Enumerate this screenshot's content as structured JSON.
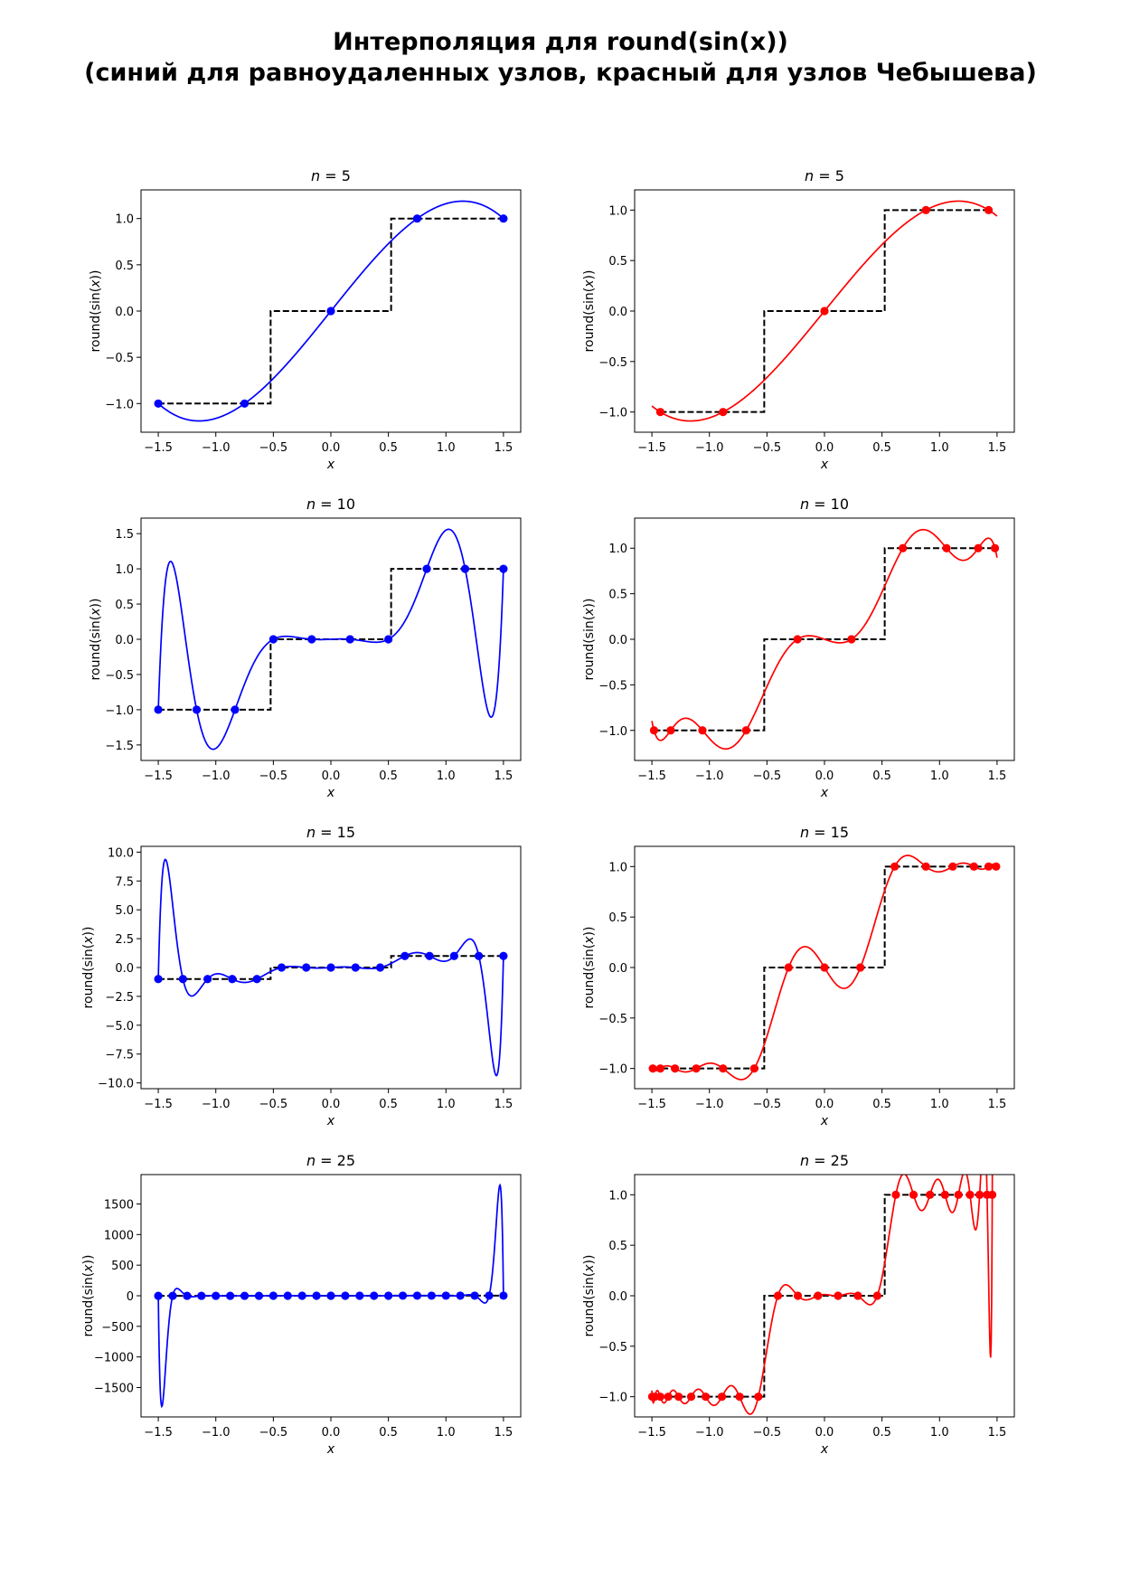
{
  "title_line1": "Интерполяция для round(sin(x))",
  "title_line2": "(синий для равноудаленных узлов, красный для узлов Чебышева)",
  "colors": {
    "equidistant": "#0000ff",
    "chebyshev": "#ff0000",
    "step": "#000000"
  },
  "chart_data": [
    {
      "type": "line",
      "n": 5,
      "title": "n = 5",
      "node_type": "equidistant",
      "xlabel": "x",
      "ylabel": "round(sin(x))",
      "xlim": [
        -1.65,
        1.65
      ],
      "ylim": [
        -1.31,
        1.31
      ],
      "xticks": [
        -1.5,
        -1.0,
        -0.5,
        0.0,
        0.5,
        1.0,
        1.5
      ],
      "xtick_labels": [
        "−1.5",
        "−1.0",
        "−0.5",
        "0.0",
        "0.5",
        "1.0",
        "1.5"
      ],
      "yticks": [
        -1.0,
        -0.5,
        0.0,
        0.5,
        1.0
      ],
      "ytick_labels": [
        "−1.0",
        "−0.5",
        "0.0",
        "0.5",
        "1.0"
      ],
      "nodes_x": [
        -1.5,
        -0.75,
        0.0,
        0.75,
        1.5
      ],
      "nodes_y": [
        -1,
        -1,
        0,
        1,
        1
      ]
    },
    {
      "type": "line",
      "n": 5,
      "title": "n = 5",
      "node_type": "chebyshev",
      "xlabel": "x",
      "ylabel": "round(sin(x))",
      "xlim": [
        -1.65,
        1.65
      ],
      "ylim": [
        -1.2,
        1.2
      ],
      "xticks": [
        -1.5,
        -1.0,
        -0.5,
        0.0,
        0.5,
        1.0,
        1.5
      ],
      "xtick_labels": [
        "−1.5",
        "−1.0",
        "−0.5",
        "0.0",
        "0.5",
        "1.0",
        "1.5"
      ],
      "yticks": [
        -1.0,
        -0.5,
        0.0,
        0.5,
        1.0
      ],
      "ytick_labels": [
        "−1.0",
        "−0.5",
        "0.0",
        "0.5",
        "1.0"
      ],
      "nodes_x": [
        -1.4266,
        -0.8817,
        0.0,
        0.8817,
        1.4266
      ],
      "nodes_y": [
        -1,
        -1,
        0,
        1,
        1
      ]
    },
    {
      "type": "line",
      "n": 10,
      "title": "n = 10",
      "node_type": "equidistant",
      "xlabel": "x",
      "ylabel": "round(sin(x))",
      "xlim": [
        -1.65,
        1.65
      ],
      "ylim": [
        -1.72,
        1.72
      ],
      "xticks": [
        -1.5,
        -1.0,
        -0.5,
        0.0,
        0.5,
        1.0,
        1.5
      ],
      "xtick_labels": [
        "−1.5",
        "−1.0",
        "−0.5",
        "0.0",
        "0.5",
        "1.0",
        "1.5"
      ],
      "yticks": [
        -1.5,
        -1.0,
        -0.5,
        0.0,
        0.5,
        1.0,
        1.5
      ],
      "ytick_labels": [
        "−1.5",
        "−1.0",
        "−0.5",
        "0.0",
        "0.5",
        "1.0",
        "1.5"
      ],
      "nodes_x": [
        -1.5,
        -1.1667,
        -0.8333,
        -0.5,
        -0.1667,
        0.1667,
        0.5,
        0.8333,
        1.1667,
        1.5
      ],
      "nodes_y": [
        -1,
        -1,
        -1,
        0,
        0,
        0,
        0,
        1,
        1,
        1
      ]
    },
    {
      "type": "line",
      "n": 10,
      "title": "n = 10",
      "node_type": "chebyshev",
      "xlabel": "x",
      "ylabel": "round(sin(x))",
      "xlim": [
        -1.65,
        1.65
      ],
      "ylim": [
        -1.33,
        1.33
      ],
      "xticks": [
        -1.5,
        -1.0,
        -0.5,
        0.0,
        0.5,
        1.0,
        1.5
      ],
      "xtick_labels": [
        "−1.5",
        "−1.0",
        "−0.5",
        "0.0",
        "0.5",
        "1.0",
        "1.5"
      ],
      "yticks": [
        -1.0,
        -0.5,
        0.0,
        0.5,
        1.0
      ],
      "ytick_labels": [
        "−1.0",
        "−0.5",
        "0.0",
        "0.5",
        "1.0"
      ],
      "nodes_x": [
        -1.4815,
        -1.3365,
        -1.0607,
        -0.681,
        -0.2347,
        0.2347,
        0.681,
        1.0607,
        1.3365,
        1.4815
      ],
      "nodes_y": [
        -1,
        -1,
        -1,
        -1,
        0,
        0,
        1,
        1,
        1,
        1
      ]
    },
    {
      "type": "line",
      "n": 15,
      "title": "n = 15",
      "node_type": "equidistant",
      "xlabel": "x",
      "ylabel": "round(sin(x))",
      "xlim": [
        -1.65,
        1.65
      ],
      "ylim": [
        -10.5,
        10.5
      ],
      "xticks": [
        -1.5,
        -1.0,
        -0.5,
        0.0,
        0.5,
        1.0,
        1.5
      ],
      "xtick_labels": [
        "−1.5",
        "−1.0",
        "−0.5",
        "0.0",
        "0.5",
        "1.0",
        "1.5"
      ],
      "yticks": [
        -10.0,
        -7.5,
        -5.0,
        -2.5,
        0.0,
        2.5,
        5.0,
        7.5,
        10.0
      ],
      "ytick_labels": [
        "−10.0",
        "−7.5",
        "−5.0",
        "−2.5",
        "0.0",
        "2.5",
        "5.0",
        "7.5",
        "10.0"
      ],
      "nodes_x": [
        -1.5,
        -1.2857,
        -1.0714,
        -0.8571,
        -0.6429,
        -0.4286,
        -0.2143,
        0.0,
        0.2143,
        0.4286,
        0.6429,
        0.8571,
        1.0714,
        1.2857,
        1.5
      ],
      "nodes_y": [
        -1,
        -1,
        -1,
        -1,
        -1,
        0,
        0,
        0,
        0,
        0,
        1,
        1,
        1,
        1,
        1
      ]
    },
    {
      "type": "line",
      "n": 15,
      "title": "n = 15",
      "node_type": "chebyshev",
      "xlabel": "x",
      "ylabel": "round(sin(x))",
      "xlim": [
        -1.65,
        1.65
      ],
      "ylim": [
        -1.2,
        1.2
      ],
      "xticks": [
        -1.5,
        -1.0,
        -0.5,
        0.0,
        0.5,
        1.0,
        1.5
      ],
      "xtick_labels": [
        "−1.5",
        "−1.0",
        "−0.5",
        "0.0",
        "0.5",
        "1.0",
        "1.5"
      ],
      "yticks": [
        -1.0,
        -0.5,
        0.0,
        0.5,
        1.0
      ],
      "ytick_labels": [
        "−1.0",
        "−0.5",
        "0.0",
        "0.5",
        "1.0"
      ],
      "nodes_x": [
        -1.4918,
        -1.4266,
        -1.299,
        -1.1147,
        -0.8817,
        -0.6101,
        -0.3119,
        0.0,
        0.3119,
        0.6101,
        0.8817,
        1.1147,
        1.299,
        1.4266,
        1.4918
      ],
      "nodes_y": [
        -1,
        -1,
        -1,
        -1,
        -1,
        -1,
        0,
        0,
        0,
        1,
        1,
        1,
        1,
        1,
        1
      ]
    },
    {
      "type": "line",
      "n": 25,
      "title": "n = 25",
      "node_type": "equidistant",
      "xlabel": "x",
      "ylabel": "round(sin(x))",
      "xlim": [
        -1.65,
        1.65
      ],
      "ylim": [
        -1980,
        1980
      ],
      "xticks": [
        -1.5,
        -1.0,
        -0.5,
        0.0,
        0.5,
        1.0,
        1.5
      ],
      "xtick_labels": [
        "−1.5",
        "−1.0",
        "−0.5",
        "0.0",
        "0.5",
        "1.0",
        "1.5"
      ],
      "yticks": [
        -1500,
        -1000,
        -500,
        0,
        500,
        1000,
        1500
      ],
      "ytick_labels": [
        "−1500",
        "−1000",
        "−500",
        "0",
        "500",
        "1000",
        "1500"
      ],
      "nodes_x": [
        -1.5,
        -1.375,
        -1.25,
        -1.125,
        -1.0,
        -0.875,
        -0.75,
        -0.625,
        -0.5,
        -0.375,
        -0.25,
        -0.125,
        0.0,
        0.125,
        0.25,
        0.375,
        0.5,
        0.625,
        0.75,
        0.875,
        1.0,
        1.125,
        1.25,
        1.375,
        1.5
      ],
      "nodes_y": [
        -1,
        -1,
        -1,
        -1,
        -1,
        -1,
        -1,
        -1,
        0,
        0,
        0,
        0,
        0,
        0,
        0,
        0,
        0,
        1,
        1,
        1,
        1,
        1,
        1,
        1,
        1
      ]
    },
    {
      "type": "line",
      "n": 25,
      "title": "n = 25",
      "node_type": "chebyshev",
      "xlabel": "x",
      "ylabel": "round(sin(x))",
      "xlim": [
        -1.65,
        1.65
      ],
      "ylim": [
        -1.2,
        1.2
      ],
      "xticks": [
        -1.5,
        -1.0,
        -0.5,
        0.0,
        0.5,
        1.0,
        1.5
      ],
      "xtick_labels": [
        "−1.5",
        "−1.0",
        "−0.5",
        "0.0",
        "0.5",
        "1.0",
        "1.5"
      ],
      "yticks": [
        -1.0,
        -0.5,
        0.0,
        0.5,
        1.0
      ],
      "ytick_labels": [
        "−1.0",
        "−0.5",
        "0.0",
        "0.5",
        "1.0"
      ],
      "nodes_x": [
        -1.497,
        -1.4734,
        -1.4266,
        -1.3577,
        -1.2678,
        -1.1588,
        -1.0325,
        -0.8915,
        -0.738,
        -0.5749,
        -0.405,
        -0.2315,
        -0.0566,
        0.118,
        0.2903,
        0.4584,
        0.6202,
        0.7737,
        0.9169,
        1.0477,
        1.1643,
        1.2651,
        1.3485,
        1.4132,
        1.4583
      ],
      "nodes_y": [
        -1,
        -1,
        -1,
        -1,
        -1,
        -1,
        -1,
        -1,
        -1,
        -1,
        0,
        0,
        0,
        0,
        0,
        0,
        1,
        1,
        1,
        1,
        1,
        1,
        1,
        1,
        1
      ]
    }
  ]
}
